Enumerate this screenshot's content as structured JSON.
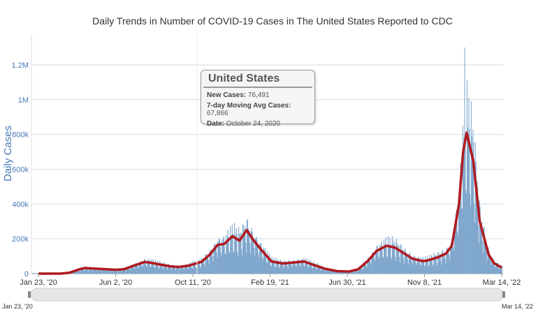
{
  "chart_data": {
    "type": "bar+line",
    "title": "Daily Trends in Number of COVID-19 Cases in The United States Reported to CDC",
    "ylabel": "Daily Cases",
    "xlabel": "",
    "x_ticks": [
      "Jan 23, '20",
      "Jun 2, '20",
      "Oct 11, '20",
      "Feb 19, '21",
      "Jun 30, '21",
      "Nov 8, '21",
      "Mar 14, '22"
    ],
    "y_ticks": [
      "0",
      "200k",
      "400k",
      "600k",
      "800k",
      "1M",
      "1.2M"
    ],
    "ylim": [
      0,
      1200000
    ],
    "xlim": [
      "2020-01-23",
      "2022-03-14"
    ],
    "grid": "horizontal",
    "colors": {
      "bars": "#7ea6cc",
      "line": "#b0191f"
    },
    "series": [
      {
        "name": "7-day Moving Avg Cases",
        "points": [
          [
            "2020-01-23",
            0
          ],
          [
            "2020-03-01",
            0
          ],
          [
            "2020-03-15",
            5000
          ],
          [
            "2020-04-01",
            25000
          ],
          [
            "2020-04-10",
            32000
          ],
          [
            "2020-05-01",
            28000
          ],
          [
            "2020-06-01",
            22000
          ],
          [
            "2020-06-15",
            25000
          ],
          [
            "2020-07-01",
            45000
          ],
          [
            "2020-07-20",
            67000
          ],
          [
            "2020-08-01",
            62000
          ],
          [
            "2020-08-15",
            52000
          ],
          [
            "2020-09-01",
            42000
          ],
          [
            "2020-09-15",
            38000
          ],
          [
            "2020-10-01",
            45000
          ],
          [
            "2020-10-24",
            67866
          ],
          [
            "2020-11-07",
            110000
          ],
          [
            "2020-11-20",
            165000
          ],
          [
            "2020-12-01",
            170000
          ],
          [
            "2020-12-15",
            215000
          ],
          [
            "2020-12-27",
            190000
          ],
          [
            "2021-01-08",
            250000
          ],
          [
            "2021-01-20",
            190000
          ],
          [
            "2021-02-01",
            140000
          ],
          [
            "2021-02-19",
            70000
          ],
          [
            "2021-03-10",
            58000
          ],
          [
            "2021-04-01",
            65000
          ],
          [
            "2021-04-15",
            70000
          ],
          [
            "2021-05-01",
            50000
          ],
          [
            "2021-05-20",
            28000
          ],
          [
            "2021-06-10",
            14000
          ],
          [
            "2021-06-30",
            12000
          ],
          [
            "2021-07-15",
            25000
          ],
          [
            "2021-08-01",
            75000
          ],
          [
            "2021-08-15",
            130000
          ],
          [
            "2021-09-01",
            160000
          ],
          [
            "2021-09-15",
            150000
          ],
          [
            "2021-10-01",
            115000
          ],
          [
            "2021-10-15",
            85000
          ],
          [
            "2021-11-01",
            72000
          ],
          [
            "2021-11-08",
            75000
          ],
          [
            "2021-11-25",
            92000
          ],
          [
            "2021-12-10",
            115000
          ],
          [
            "2021-12-20",
            160000
          ],
          [
            "2022-01-01",
            400000
          ],
          [
            "2022-01-08",
            700000
          ],
          [
            "2022-01-14",
            810000
          ],
          [
            "2022-01-25",
            650000
          ],
          [
            "2022-02-05",
            300000
          ],
          [
            "2022-02-20",
            110000
          ],
          [
            "2022-03-01",
            60000
          ],
          [
            "2022-03-14",
            35000
          ]
        ]
      }
    ],
    "daily_peak": {
      "date": "2022-01-10",
      "value": 1300000
    }
  },
  "tooltip": {
    "title": "United States",
    "rows": [
      {
        "label": "New Cases:",
        "value": "76,491"
      },
      {
        "label": "7-day Moving Avg Cases:",
        "value": "67,866"
      },
      {
        "label": "Date:",
        "value": "October 24, 2020"
      }
    ]
  },
  "range": {
    "start": "Jan 23, '20",
    "end": "Mar 14, '22"
  }
}
